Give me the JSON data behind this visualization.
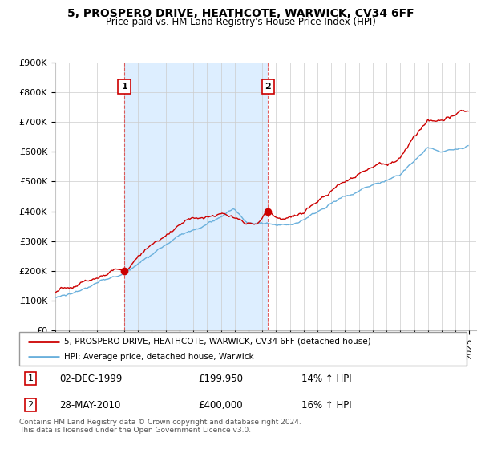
{
  "title": "5, PROSPERO DRIVE, HEATHCOTE, WARWICK, CV34 6FF",
  "subtitle": "Price paid vs. HM Land Registry's House Price Index (HPI)",
  "ylim": [
    0,
    900000
  ],
  "xlim_start": 1995.0,
  "xlim_end": 2025.5,
  "sale1_x": 2000.0,
  "sale1_price": 199950,
  "sale2_x": 2010.42,
  "sale2_price": 400000,
  "legend_line1": "5, PROSPERO DRIVE, HEATHCOTE, WARWICK, CV34 6FF (detached house)",
  "legend_line2": "HPI: Average price, detached house, Warwick",
  "footer": "Contains HM Land Registry data © Crown copyright and database right 2024.\nThis data is licensed under the Open Government Licence v3.0.",
  "hpi_color": "#6ab0dc",
  "price_color": "#cc0000",
  "grid_color": "#cccccc",
  "shade_color": "#ddeeff",
  "dashed_line_color": "#dd4444"
}
